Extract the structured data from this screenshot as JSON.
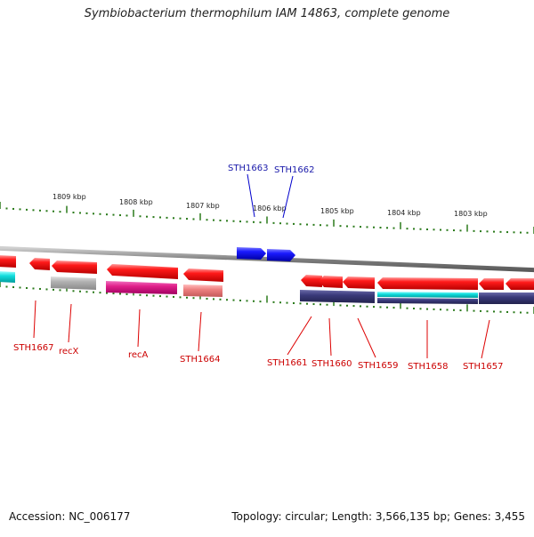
{
  "title": "Symbiobacterium thermophilum IAM 14863, complete genome",
  "accession_text": "Accession: NC_006177",
  "summary_text": "Topology: circular; Length: 3,566,135 bp; Genes: 3,455",
  "colors": {
    "backbone": "#7f7f7f",
    "tick": "#2a7a1a",
    "forward_gene": "#0000e0",
    "forward_label": "#1a1aaa",
    "reverse_gene": "#ee0000",
    "reverse_label": "#cc0000",
    "cog_grey": "#aaaaaa",
    "cog_magenta": "#e0208a",
    "cog_pink": "#ee8080",
    "cog_navy": "#3a3a7a",
    "cog_cyan": "#11dddd"
  },
  "kbp_ticks": [
    {
      "label": "1809 kbp"
    },
    {
      "label": "1808 kbp"
    },
    {
      "label": "1807 kbp"
    },
    {
      "label": "1806 kbp"
    },
    {
      "label": "1805 kbp"
    },
    {
      "label": "1804 kbp"
    },
    {
      "label": "1803 kbp"
    }
  ],
  "forward_genes": [
    {
      "name": "STH1663"
    },
    {
      "name": "STH1662"
    }
  ],
  "reverse_genes": [
    {
      "name": "STH1667"
    },
    {
      "name": "recX"
    },
    {
      "name": "recA"
    },
    {
      "name": "STH1664"
    },
    {
      "name": "STH1661"
    },
    {
      "name": "STH1660"
    },
    {
      "name": "STH1659"
    },
    {
      "name": "STH1658"
    },
    {
      "name": "STH1657"
    }
  ]
}
